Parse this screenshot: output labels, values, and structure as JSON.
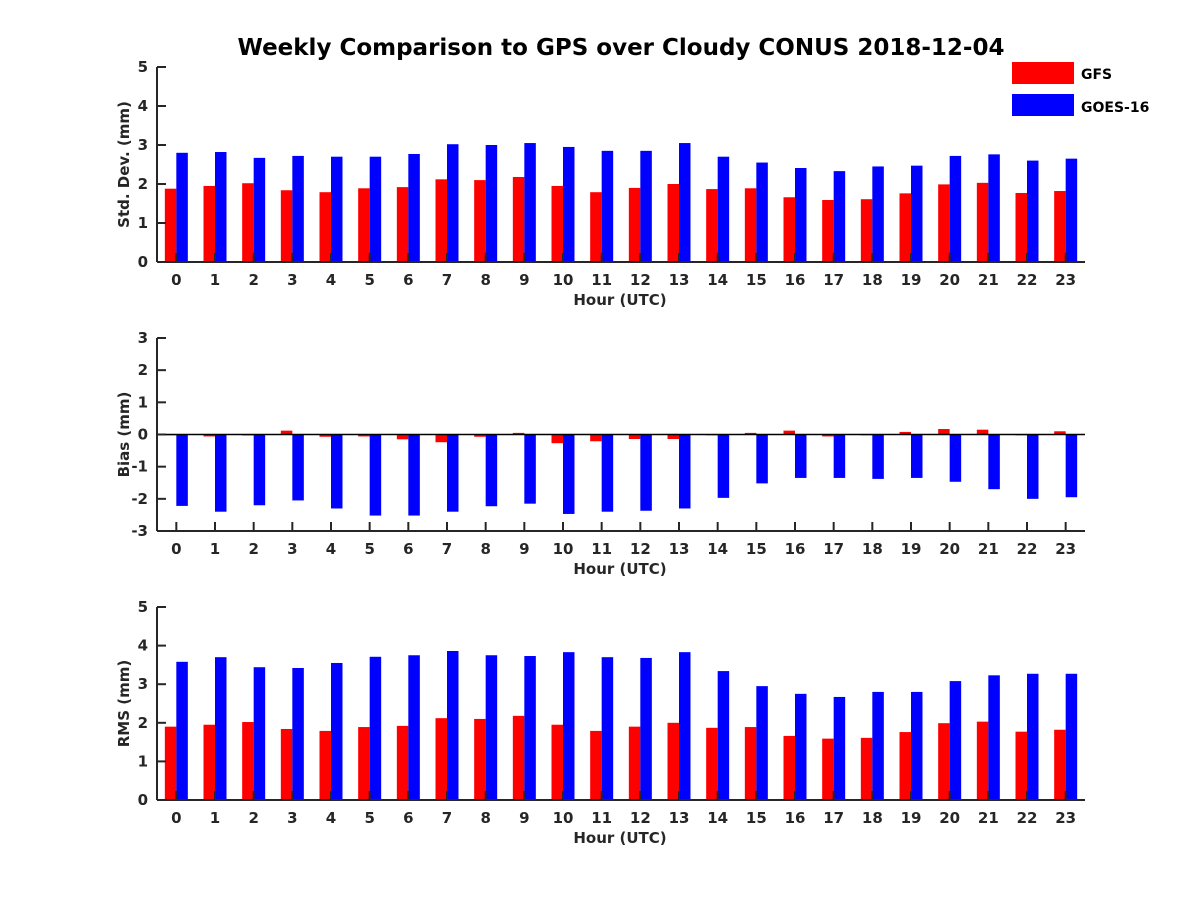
{
  "title": "Weekly Comparison to GPS over Cloudy CONUS 2018-12-04",
  "colors": {
    "GFS": "#ff0000",
    "GOES-16": "#0000ff",
    "axis": "#262626"
  },
  "legend": {
    "placement": "top-right",
    "entries": [
      "GFS",
      "GOES-16"
    ]
  },
  "chart_data": [
    {
      "type": "bar",
      "ylabel": "Std. Dev. (mm)",
      "xlabel": "Hour (UTC)",
      "ylim": [
        0,
        5
      ],
      "yticks": [
        0,
        1,
        2,
        3,
        4,
        5
      ],
      "categories": [
        "0",
        "1",
        "2",
        "3",
        "4",
        "5",
        "6",
        "7",
        "8",
        "9",
        "10",
        "11",
        "12",
        "13",
        "14",
        "15",
        "16",
        "17",
        "18",
        "19",
        "20",
        "21",
        "22",
        "23"
      ],
      "series": [
        {
          "name": "GFS",
          "values": [
            1.88,
            1.95,
            2.02,
            1.84,
            1.79,
            1.89,
            1.92,
            2.12,
            2.1,
            2.18,
            1.95,
            1.79,
            1.9,
            2.0,
            1.87,
            1.89,
            1.66,
            1.59,
            1.61,
            1.76,
            1.99,
            2.03,
            1.77,
            1.82
          ]
        },
        {
          "name": "GOES-16",
          "values": [
            2.8,
            2.82,
            2.67,
            2.72,
            2.7,
            2.7,
            2.77,
            3.02,
            3.0,
            3.05,
            2.95,
            2.85,
            2.85,
            3.05,
            2.7,
            2.55,
            2.41,
            2.33,
            2.45,
            2.47,
            2.72,
            2.76,
            2.6,
            2.65
          ]
        }
      ]
    },
    {
      "type": "bar",
      "ylabel": "Bias (mm)",
      "xlabel": "Hour (UTC)",
      "ylim": [
        -3,
        3
      ],
      "yticks": [
        -3,
        -2,
        -1,
        0,
        1,
        2,
        3
      ],
      "categories": [
        "0",
        "1",
        "2",
        "3",
        "4",
        "5",
        "6",
        "7",
        "8",
        "9",
        "10",
        "11",
        "12",
        "13",
        "14",
        "15",
        "16",
        "17",
        "18",
        "19",
        "20",
        "21",
        "22",
        "23"
      ],
      "series": [
        {
          "name": "GFS",
          "values": [
            -0.02,
            -0.06,
            -0.03,
            0.12,
            -0.07,
            -0.06,
            -0.15,
            -0.24,
            -0.07,
            0.05,
            -0.27,
            -0.21,
            -0.14,
            -0.14,
            -0.02,
            0.05,
            0.12,
            -0.06,
            -0.02,
            0.08,
            0.17,
            0.15,
            0.0,
            0.1
          ]
        },
        {
          "name": "GOES-16",
          "values": [
            -2.22,
            -2.4,
            -2.2,
            -2.05,
            -2.3,
            -2.52,
            -2.52,
            -2.4,
            -2.23,
            -2.15,
            -2.47,
            -2.4,
            -2.37,
            -2.3,
            -1.97,
            -1.52,
            -1.35,
            -1.35,
            -1.38,
            -1.35,
            -1.47,
            -1.7,
            -2.0,
            -1.95
          ]
        }
      ]
    },
    {
      "type": "bar",
      "ylabel": "RMS (mm)",
      "xlabel": "Hour (UTC)",
      "ylim": [
        0,
        5
      ],
      "yticks": [
        0,
        1,
        2,
        3,
        4,
        5
      ],
      "categories": [
        "0",
        "1",
        "2",
        "3",
        "4",
        "5",
        "6",
        "7",
        "8",
        "9",
        "10",
        "11",
        "12",
        "13",
        "14",
        "15",
        "16",
        "17",
        "18",
        "19",
        "20",
        "21",
        "22",
        "23"
      ],
      "series": [
        {
          "name": "GFS",
          "values": [
            1.9,
            1.95,
            2.02,
            1.84,
            1.79,
            1.89,
            1.92,
            2.12,
            2.1,
            2.18,
            1.95,
            1.79,
            1.9,
            2.0,
            1.87,
            1.89,
            1.66,
            1.59,
            1.61,
            1.76,
            1.99,
            2.03,
            1.77,
            1.82
          ]
        },
        {
          "name": "GOES-16",
          "values": [
            3.58,
            3.7,
            3.44,
            3.42,
            3.55,
            3.71,
            3.75,
            3.86,
            3.75,
            3.73,
            3.83,
            3.7,
            3.68,
            3.83,
            3.34,
            2.95,
            2.75,
            2.67,
            2.8,
            2.8,
            3.08,
            3.23,
            3.27,
            3.27
          ]
        }
      ]
    }
  ]
}
